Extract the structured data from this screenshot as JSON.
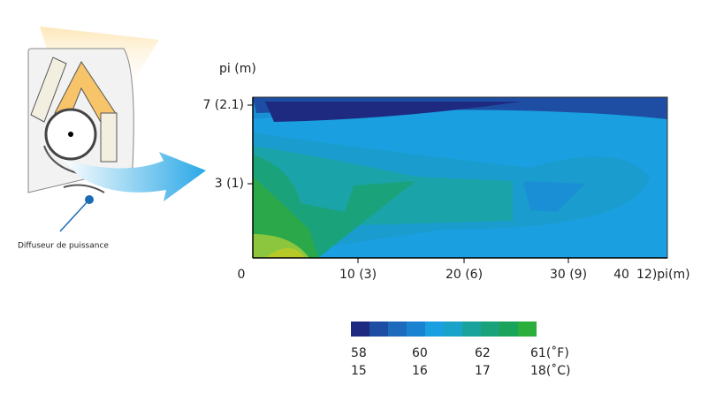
{
  "axis": {
    "y_title": "pi (m)",
    "y_ticks": [
      "7 (2.1)",
      "3 (1)"
    ],
    "x_ticks": [
      "0",
      "10 (3)",
      "20 (6)",
      "30 (9)",
      "40",
      "12)pi(m)"
    ]
  },
  "device_label": "Diffuseur de puissance",
  "legend": {
    "colors": [
      "#1e2a80",
      "#1d4ea3",
      "#1e6bbd",
      "#1a83d1",
      "#1aa0e0",
      "#1aa3c8",
      "#1aa39c",
      "#1aa37a",
      "#1aa35a",
      "#2cae3c"
    ],
    "fahrenheit": [
      "58",
      "60",
      "62",
      "61(˚F)"
    ],
    "celsius": [
      "15",
      "16",
      "17",
      "18(˚C)"
    ]
  }
}
